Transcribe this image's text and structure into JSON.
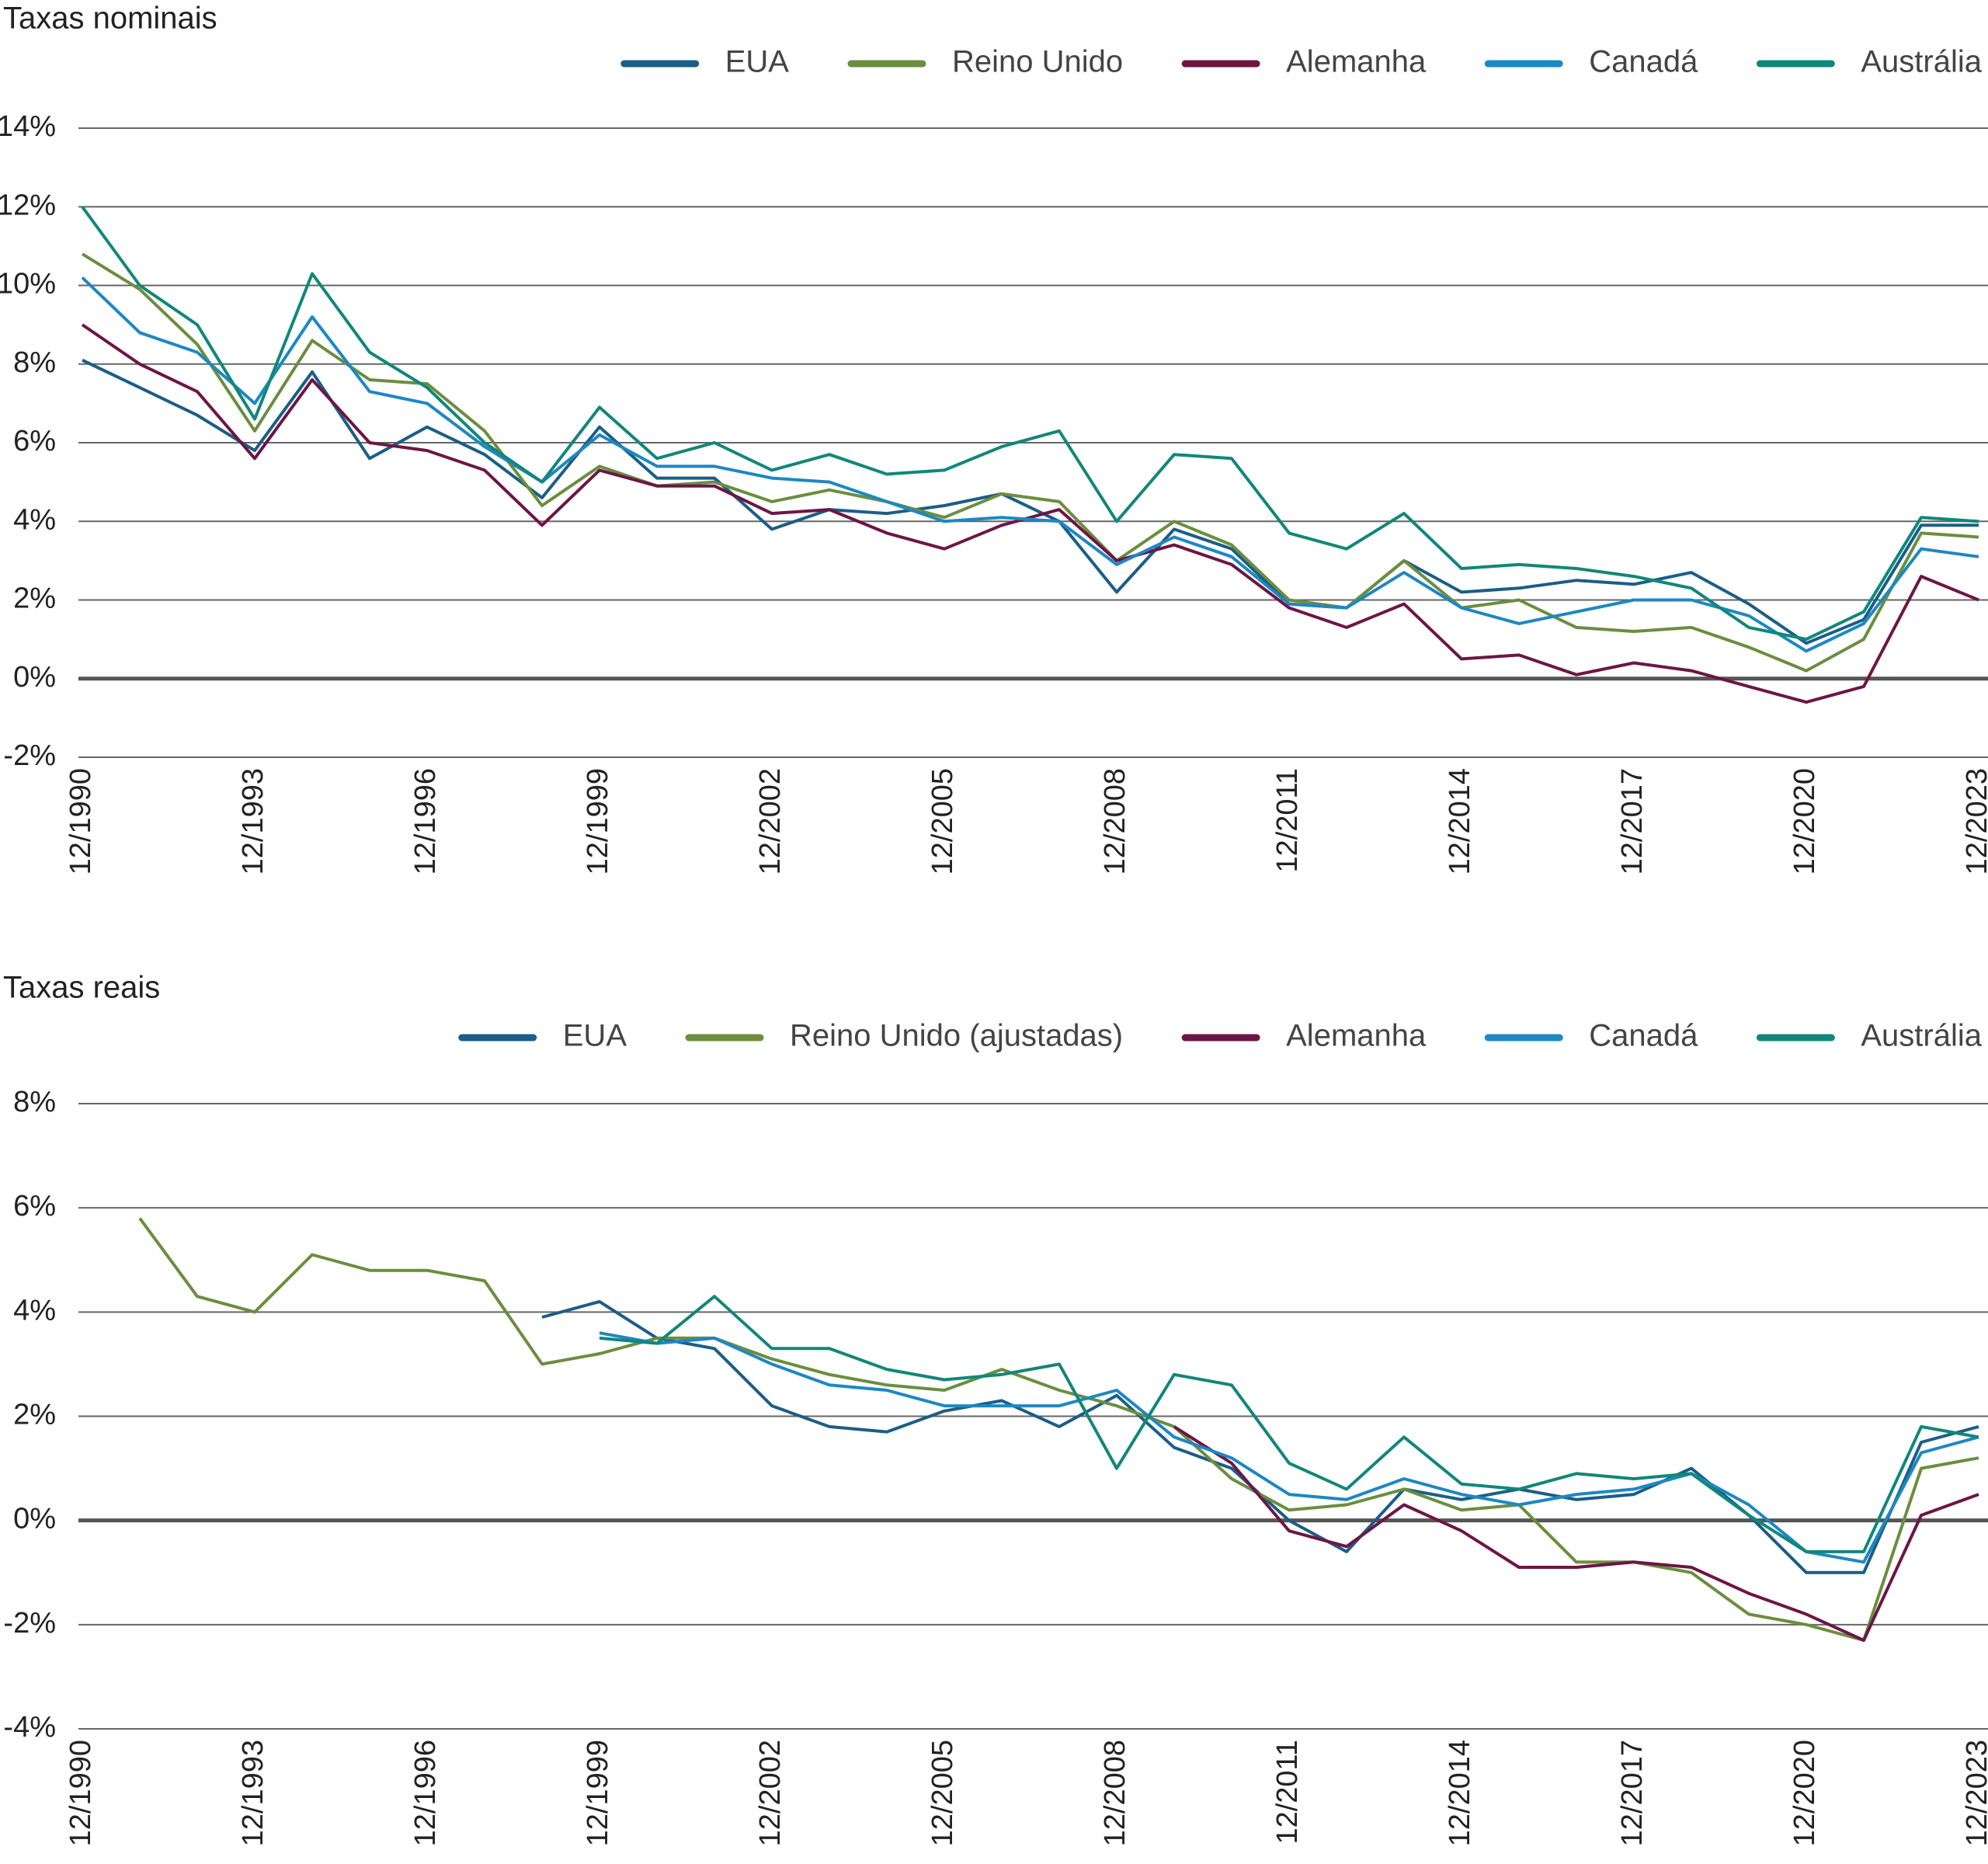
{
  "chart_data": [
    {
      "type": "line",
      "title": "Taxas nominais",
      "x": [
        "12/1990",
        "12/1991",
        "12/1992",
        "12/1993",
        "12/1994",
        "12/1995",
        "12/1996",
        "12/1997",
        "12/1998",
        "12/1999",
        "12/2000",
        "12/2001",
        "12/2002",
        "12/2003",
        "12/2004",
        "12/2005",
        "12/2006",
        "12/2007",
        "12/2008",
        "12/2009",
        "12/2010",
        "12/2011",
        "12/2012",
        "12/2013",
        "12/2014",
        "12/2015",
        "12/2016",
        "12/2017",
        "12/2018",
        "12/2019",
        "12/2020",
        "12/2021",
        "12/2022",
        "12/2023"
      ],
      "xticks": [
        "12/1990",
        "12/1993",
        "12/1996",
        "12/1999",
        "12/2002",
        "12/2005",
        "12/2008",
        "12/2011",
        "12/2014",
        "12/2017",
        "12/2020",
        "12/2023"
      ],
      "ylim": [
        -2,
        14
      ],
      "yticks": [
        {
          "value": -2,
          "label": "-2%"
        },
        {
          "value": 0,
          "label": "0%"
        },
        {
          "value": 2,
          "label": "2%"
        },
        {
          "value": 4,
          "label": "4%"
        },
        {
          "value": 6,
          "label": "6%"
        },
        {
          "value": 8,
          "label": "8%"
        },
        {
          "value": 10,
          "label": "10%"
        },
        {
          "value": 12,
          "label": "12%"
        },
        {
          "value": 14,
          "label": "14%"
        }
      ],
      "grid": true,
      "legend": "top-right",
      "series": [
        {
          "name": "EUA",
          "color": "#1b5e86",
          "values": [
            8.1,
            7.4,
            6.7,
            5.8,
            7.8,
            5.6,
            6.4,
            5.7,
            4.6,
            6.4,
            5.1,
            5.1,
            3.8,
            4.3,
            4.2,
            4.4,
            4.7,
            4.0,
            2.2,
            3.8,
            3.3,
            1.9,
            1.8,
            3.0,
            2.2,
            2.3,
            2.5,
            2.4,
            2.7,
            1.9,
            0.9,
            1.5,
            3.9,
            3.9
          ]
        },
        {
          "name": "Reino Unido",
          "color": "#6b8e3e",
          "values": [
            10.8,
            9.9,
            8.5,
            6.3,
            8.6,
            7.6,
            7.5,
            6.3,
            4.4,
            5.4,
            4.9,
            5.0,
            4.5,
            4.8,
            4.5,
            4.1,
            4.7,
            4.5,
            3.0,
            4.0,
            3.4,
            2.0,
            1.8,
            3.0,
            1.8,
            2.0,
            1.3,
            1.2,
            1.3,
            0.8,
            0.2,
            1.0,
            3.7,
            3.6
          ]
        },
        {
          "name": "Alemanha",
          "color": "#6d1645",
          "values": [
            9.0,
            8.0,
            7.3,
            5.6,
            7.6,
            6.0,
            5.8,
            5.3,
            3.9,
            5.3,
            4.9,
            4.9,
            4.2,
            4.3,
            3.7,
            3.3,
            3.9,
            4.3,
            3.0,
            3.4,
            2.9,
            1.8,
            1.3,
            1.9,
            0.5,
            0.6,
            0.1,
            0.4,
            0.2,
            -0.2,
            -0.6,
            -0.2,
            2.6,
            2.0
          ]
        },
        {
          "name": "Canadá",
          "color": "#1d88c2",
          "values": [
            10.2,
            8.8,
            8.3,
            7.0,
            9.2,
            7.3,
            7.0,
            5.9,
            5.0,
            6.2,
            5.4,
            5.4,
            5.1,
            5.0,
            4.5,
            4.0,
            4.1,
            4.0,
            2.9,
            3.6,
            3.1,
            1.9,
            1.8,
            2.7,
            1.8,
            1.4,
            1.7,
            2.0,
            2.0,
            1.6,
            0.7,
            1.4,
            3.3,
            3.1
          ]
        },
        {
          "name": "Austrália",
          "color": "#11877a",
          "values": [
            12.0,
            10.0,
            9.0,
            6.6,
            10.3,
            8.3,
            7.4,
            6.0,
            5.0,
            6.9,
            5.6,
            6.0,
            5.3,
            5.7,
            5.2,
            5.3,
            5.9,
            6.3,
            4.0,
            5.7,
            5.6,
            3.7,
            3.3,
            4.2,
            2.8,
            2.9,
            2.8,
            2.6,
            2.3,
            1.3,
            1.0,
            1.7,
            4.1,
            4.0
          ]
        }
      ]
    },
    {
      "type": "line",
      "title": "Taxas reais",
      "x": [
        "12/1990",
        "12/1991",
        "12/1992",
        "12/1993",
        "12/1994",
        "12/1995",
        "12/1996",
        "12/1997",
        "12/1998",
        "12/1999",
        "12/2000",
        "12/2001",
        "12/2002",
        "12/2003",
        "12/2004",
        "12/2005",
        "12/2006",
        "12/2007",
        "12/2008",
        "12/2009",
        "12/2010",
        "12/2011",
        "12/2012",
        "12/2013",
        "12/2014",
        "12/2015",
        "12/2016",
        "12/2017",
        "12/2018",
        "12/2019",
        "12/2020",
        "12/2021",
        "12/2022",
        "12/2023"
      ],
      "xticks": [
        "12/1990",
        "12/1993",
        "12/1996",
        "12/1999",
        "12/2002",
        "12/2005",
        "12/2008",
        "12/2011",
        "12/2014",
        "12/2017",
        "12/2020",
        "12/2023"
      ],
      "ylim": [
        -4,
        8
      ],
      "yticks": [
        {
          "value": -4,
          "label": "-4%"
        },
        {
          "value": -2,
          "label": "-2%"
        },
        {
          "value": 0,
          "label": "0%"
        },
        {
          "value": 2,
          "label": "2%"
        },
        {
          "value": 4,
          "label": "4%"
        },
        {
          "value": 6,
          "label": "6%"
        },
        {
          "value": 8,
          "label": "8%"
        }
      ],
      "grid": true,
      "legend": "top-right",
      "series": [
        {
          "name": "EUA",
          "color": "#1b5e86",
          "values": [
            null,
            null,
            null,
            null,
            null,
            null,
            null,
            null,
            3.9,
            4.2,
            3.5,
            3.3,
            2.2,
            1.8,
            1.7,
            2.1,
            2.3,
            1.8,
            2.4,
            1.4,
            1.0,
            0.0,
            -0.6,
            0.6,
            0.4,
            0.6,
            0.4,
            0.5,
            1.0,
            0.1,
            -1.0,
            -1.0,
            1.5,
            1.8
          ]
        },
        {
          "name": "Reino Unido (ajustadas)",
          "color": "#6b8e3e",
          "values": [
            null,
            5.8,
            4.3,
            4.0,
            5.1,
            4.8,
            4.8,
            4.6,
            3.0,
            3.2,
            3.5,
            3.5,
            3.1,
            2.8,
            2.6,
            2.5,
            2.9,
            2.5,
            2.2,
            1.8,
            0.8,
            0.2,
            0.3,
            0.6,
            0.2,
            0.3,
            -0.8,
            -0.8,
            -1.0,
            -1.8,
            -2.0,
            -2.3,
            1.0,
            1.2
          ]
        },
        {
          "name": "Alemanha",
          "color": "#6d1645",
          "values": [
            null,
            null,
            null,
            null,
            null,
            null,
            null,
            null,
            null,
            null,
            null,
            null,
            null,
            null,
            null,
            null,
            null,
            null,
            null,
            1.8,
            1.1,
            -0.2,
            -0.5,
            0.3,
            -0.2,
            -0.9,
            -0.9,
            -0.8,
            -0.9,
            -1.4,
            -1.8,
            -2.3,
            0.1,
            0.5
          ]
        },
        {
          "name": "Canadá",
          "color": "#1d88c2",
          "values": [
            null,
            null,
            null,
            null,
            null,
            null,
            null,
            null,
            null,
            3.6,
            3.4,
            3.5,
            3.0,
            2.6,
            2.5,
            2.2,
            2.2,
            2.2,
            2.5,
            1.6,
            1.2,
            0.5,
            0.4,
            0.8,
            0.5,
            0.3,
            0.5,
            0.6,
            0.9,
            0.3,
            -0.6,
            -0.8,
            1.3,
            1.6
          ]
        },
        {
          "name": "Austrália",
          "color": "#11877a",
          "values": [
            null,
            null,
            null,
            null,
            null,
            null,
            null,
            null,
            null,
            3.5,
            3.4,
            4.3,
            3.3,
            3.3,
            2.9,
            2.7,
            2.8,
            3.0,
            1.0,
            2.8,
            2.6,
            1.1,
            0.6,
            1.6,
            0.7,
            0.6,
            0.9,
            0.8,
            0.9,
            0.1,
            -0.6,
            -0.6,
            1.8,
            1.6
          ]
        }
      ]
    }
  ]
}
